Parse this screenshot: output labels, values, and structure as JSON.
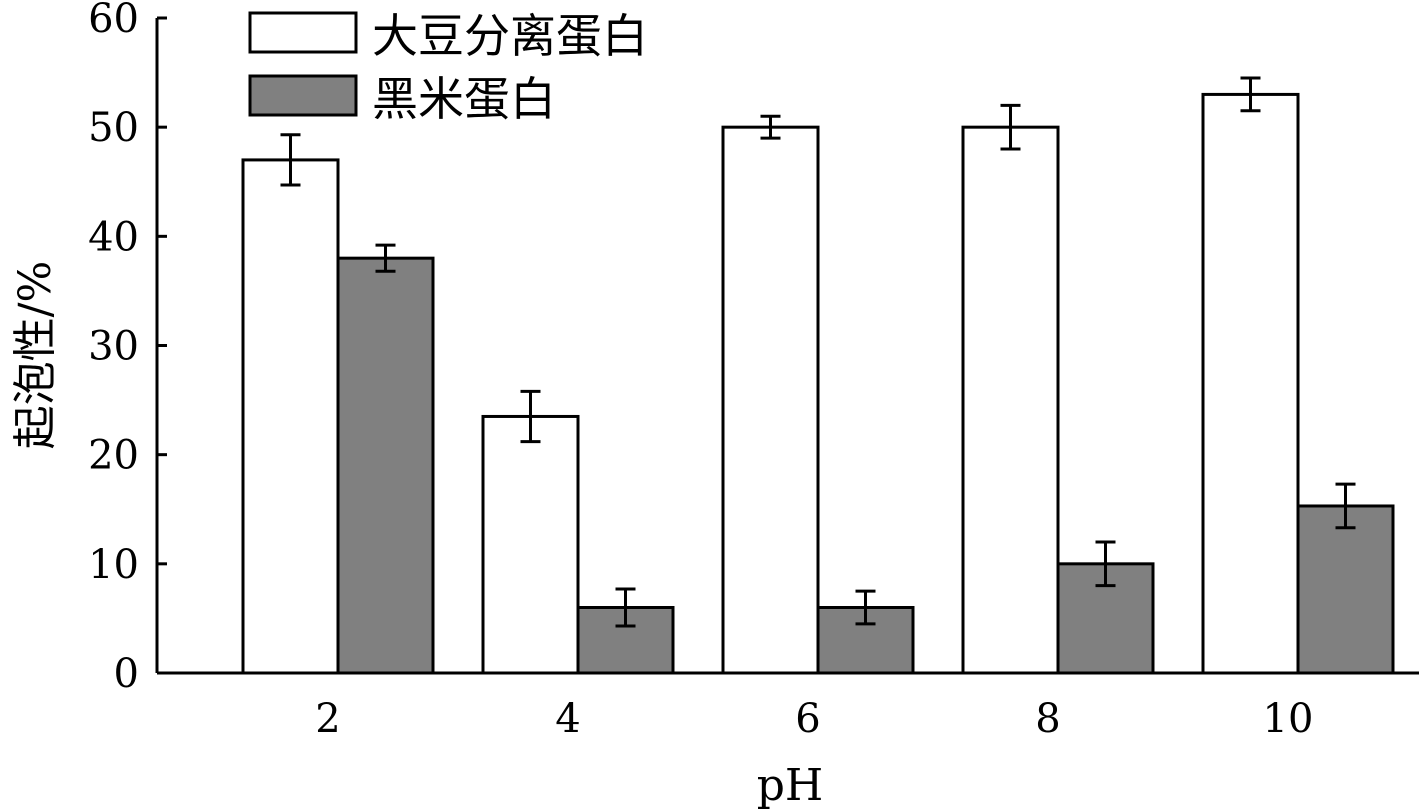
{
  "chart_data": {
    "type": "bar",
    "categories": [
      "2",
      "4",
      "6",
      "8",
      "10"
    ],
    "series": [
      {
        "name": "大豆分离蛋白",
        "values": [
          47,
          23.5,
          50,
          50,
          53
        ],
        "errors": [
          2.3,
          2.3,
          1.0,
          2.0,
          1.5
        ],
        "color": "#ffffff"
      },
      {
        "name": "黑米蛋白",
        "values": [
          38,
          6,
          6,
          10,
          15.3
        ],
        "errors": [
          1.2,
          1.7,
          1.5,
          2.0,
          2.0
        ],
        "color": "#808080"
      }
    ],
    "xlabel": "pH",
    "ylabel": "起泡性/%",
    "ylim": [
      0,
      60
    ],
    "yticks": [
      "0",
      "10",
      "20",
      "30",
      "40",
      "50",
      "60"
    ],
    "grid": false,
    "legend_position": "top-left"
  }
}
